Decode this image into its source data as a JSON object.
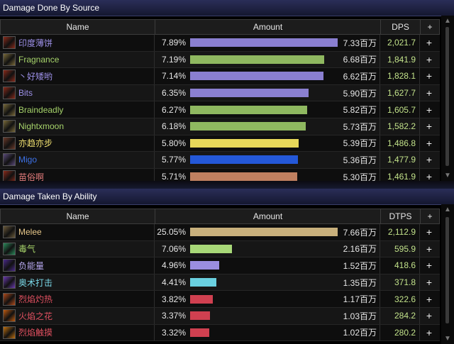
{
  "panel_top": {
    "title": "Damage Done By Source",
    "columns": {
      "name": "Name",
      "amount": "Amount",
      "rate": "DPS",
      "plus": "+"
    },
    "rows": [
      {
        "name": "印度薄饼",
        "name_color": "#9d90e8",
        "pct": "7.89%",
        "bar_fraction": 1.0,
        "bar_color": "#8a7fd0",
        "amount": "7.33百万",
        "rate": "2,021.7",
        "icon": "warrior-slash-icon"
      },
      {
        "name": "Fragnance",
        "name_color": "#a6d36a",
        "pct": "7.19%",
        "bar_fraction": 0.911,
        "bar_color": "#8fb860",
        "amount": "6.68百万",
        "rate": "1,841.9",
        "icon": "hunter-beast-icon"
      },
      {
        "name": "丶好矮哟",
        "name_color": "#9d90e8",
        "pct": "7.14%",
        "bar_fraction": 0.905,
        "bar_color": "#8a7fd0",
        "amount": "6.62百万",
        "rate": "1,828.1",
        "icon": "warrior-slash-icon"
      },
      {
        "name": "Bits",
        "name_color": "#9d90e8",
        "pct": "6.35%",
        "bar_fraction": 0.805,
        "bar_color": "#8a7fd0",
        "amount": "5.90百万",
        "rate": "1,627.7",
        "icon": "warrior-slash-icon"
      },
      {
        "name": "Braindeadly",
        "name_color": "#a6d36a",
        "pct": "6.27%",
        "bar_fraction": 0.795,
        "bar_color": "#8fb860",
        "amount": "5.82百万",
        "rate": "1,605.7",
        "icon": "hunter-beast-icon"
      },
      {
        "name": "Nightxmoon",
        "name_color": "#a6d36a",
        "pct": "6.18%",
        "bar_fraction": 0.783,
        "bar_color": "#8fb860",
        "amount": "5.73百万",
        "rate": "1,582.2",
        "icon": "hunter-beast-icon"
      },
      {
        "name": "亦趋亦步",
        "name_color": "#f0e070",
        "pct": "5.80%",
        "bar_fraction": 0.735,
        "bar_color": "#e8d85a",
        "amount": "5.39百万",
        "rate": "1,486.8",
        "icon": "rogue-dagger-icon"
      },
      {
        "name": "Migo",
        "name_color": "#3d72e8",
        "pct": "5.77%",
        "bar_fraction": 0.731,
        "bar_color": "#2458d8",
        "amount": "5.36百万",
        "rate": "1,477.9",
        "icon": "shaman-totem-icon"
      },
      {
        "name": "苗俗啊",
        "name_color": "#e07a7a",
        "pct": "5.71%",
        "bar_fraction": 0.724,
        "bar_color": "#c08060",
        "amount": "5.30百万",
        "rate": "1,461.9",
        "icon": "warrior-slash-icon"
      }
    ]
  },
  "panel_bottom": {
    "title": "Damage Taken By Ability",
    "columns": {
      "name": "Name",
      "amount": "Amount",
      "rate": "DTPS",
      "plus": "+"
    },
    "rows": [
      {
        "name": "Melee",
        "name_color": "#e8c88a",
        "pct": "25.05%",
        "bar_fraction": 1.0,
        "bar_color": "#c8b07c",
        "amount": "7.66百万",
        "rate": "2,112.9",
        "icon": "melee-claw-icon"
      },
      {
        "name": "毒气",
        "name_color": "#a6d36a",
        "pct": "7.06%",
        "bar_fraction": 0.282,
        "bar_color": "#a8d878",
        "amount": "2.16百万",
        "rate": "595.9",
        "icon": "poison-cloud-icon"
      },
      {
        "name": "负能量",
        "name_color": "#b7a8f0",
        "pct": "4.96%",
        "bar_fraction": 0.198,
        "bar_color": "#9a8ee0",
        "amount": "1.52百万",
        "rate": "418.6",
        "icon": "shadow-energy-icon"
      },
      {
        "name": "奥术打击",
        "name_color": "#7ad8e8",
        "pct": "4.41%",
        "bar_fraction": 0.176,
        "bar_color": "#6ad0e0",
        "amount": "1.35百万",
        "rate": "371.8",
        "icon": "arcane-strike-icon"
      },
      {
        "name": "烈焰灼热",
        "name_color": "#e05060",
        "pct": "3.82%",
        "bar_fraction": 0.152,
        "bar_color": "#d04050",
        "amount": "1.17百万",
        "rate": "322.6",
        "icon": "fire-burn-icon"
      },
      {
        "name": "火焰之花",
        "name_color": "#e05060",
        "pct": "3.37%",
        "bar_fraction": 0.134,
        "bar_color": "#d04050",
        "amount": "1.03百万",
        "rate": "284.2",
        "icon": "fire-flower-icon"
      },
      {
        "name": "烈焰触摸",
        "name_color": "#e05060",
        "pct": "3.32%",
        "bar_fraction": 0.132,
        "bar_color": "#d04050",
        "amount": "1.02百万",
        "rate": "280.2",
        "icon": "fire-touch-icon"
      }
    ]
  },
  "icon_colors": {
    "warrior-slash-icon": "#8a2a1a",
    "hunter-beast-icon": "#7a6a3a",
    "rogue-dagger-icon": "#6a3a2a",
    "shaman-totem-icon": "#5a4a7a",
    "melee-claw-icon": "#6a5a3a",
    "poison-cloud-icon": "#2a8a5a",
    "shadow-energy-icon": "#4a2a8a",
    "arcane-strike-icon": "#6a3ab0",
    "fire-burn-icon": "#b04a1a",
    "fire-flower-icon": "#c05a10",
    "fire-touch-icon": "#c07010"
  }
}
